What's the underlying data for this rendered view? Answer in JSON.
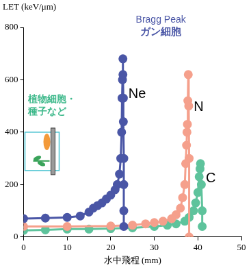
{
  "chart_data": {
    "type": "line",
    "x_label": "水中飛程 (mm)",
    "y_label": "LET (keV/μm)",
    "xlim": [
      0,
      50
    ],
    "xticks": [
      0,
      10,
      20,
      30,
      40,
      50
    ],
    "ylim": [
      0,
      800
    ],
    "yticks": [
      0,
      200,
      400,
      600,
      800
    ],
    "grid": false,
    "series": [
      {
        "name": "Ne",
        "color": "#4a56a6",
        "marker": "circle",
        "x": [
          0,
          5,
          10,
          13,
          15,
          16,
          17,
          18,
          19,
          20,
          21,
          21.5,
          22,
          22.3,
          22.5,
          22.6,
          22.7,
          22.8,
          22.8,
          22.9,
          22.9,
          23,
          23,
          23,
          23
        ],
        "values": [
          70,
          72,
          75,
          80,
          95,
          110,
          120,
          130,
          145,
          160,
          180,
          200,
          240,
          300,
          400,
          530,
          600,
          680,
          620,
          530,
          440,
          300,
          200,
          100,
          40
        ]
      },
      {
        "name": "N",
        "color": "#f5a08c",
        "marker": "circle",
        "x": [
          0,
          10,
          20,
          25,
          28,
          30,
          32,
          34,
          35,
          36,
          36.5,
          37,
          37.2,
          37.4,
          37.5,
          37.6,
          37.7,
          37.8,
          37.9,
          38,
          38
        ],
        "values": [
          40,
          40,
          42,
          45,
          50,
          55,
          60,
          70,
          85,
          110,
          150,
          200,
          280,
          350,
          400,
          430,
          520,
          620,
          500,
          300,
          0
        ]
      },
      {
        "name": "C",
        "color": "#5ec39c",
        "marker": "circle",
        "x": [
          0,
          5,
          10,
          15,
          20,
          25,
          30,
          33,
          35,
          37,
          38,
          39,
          39.5,
          40,
          40.3,
          40.5,
          40.6,
          40.8,
          41,
          41
        ],
        "values": [
          25,
          27,
          30,
          30,
          32,
          35,
          40,
          45,
          50,
          60,
          75,
          100,
          130,
          170,
          230,
          260,
          280,
          200,
          100,
          40
        ]
      }
    ],
    "annotations": [
      {
        "text": [
          "Bragg Peak"
        ],
        "color": "#4a56a6"
      },
      {
        "text": [
          "ガン細胞"
        ],
        "color": "#4a56a6"
      },
      {
        "text": [
          "植物細胞・",
          "種子など"
        ],
        "color": "#3cb88a"
      }
    ]
  }
}
